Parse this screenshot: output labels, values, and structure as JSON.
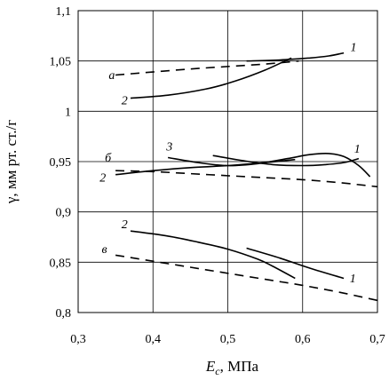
{
  "chart_data": {
    "type": "line",
    "title": "",
    "xlabel_main": "E",
    "xlabel_sub": "c",
    "xlabel_unit": ", МПа",
    "ylabel": "γ, мм рт. ст./г",
    "xlim": [
      0.3,
      0.7
    ],
    "ylim": [
      0.8,
      1.1
    ],
    "x_ticks": [
      "0,3",
      "0,4",
      "0,5",
      "0,6",
      "0,7"
    ],
    "y_ticks": [
      "0,8",
      "0,85",
      "0,9",
      "0,95",
      "1",
      "1,05",
      "1,1"
    ],
    "grid": true,
    "series": [
      {
        "name": "а-1",
        "group": "а",
        "curve": "1",
        "style": "solid",
        "x": [
          0.525,
          0.57,
          0.61,
          0.635,
          0.655
        ],
        "y": [
          1.05,
          1.051,
          1.053,
          1.055,
          1.058
        ]
      },
      {
        "name": "а-2",
        "group": "а",
        "curve": "2",
        "style": "solid",
        "x": [
          0.37,
          0.42,
          0.47,
          0.51,
          0.55,
          0.585
        ],
        "y": [
          1.013,
          1.016,
          1.022,
          1.03,
          1.041,
          1.053
        ]
      },
      {
        "name": "а-d",
        "group": "а",
        "curve": "",
        "style": "dashed",
        "x": [
          0.35,
          0.45,
          0.55,
          0.595
        ],
        "y": [
          1.036,
          1.042,
          1.047,
          1.05
        ]
      },
      {
        "name": "б-1",
        "group": "б",
        "curve": "1",
        "style": "solid",
        "x": [
          0.48,
          0.52,
          0.56,
          0.6,
          0.63,
          0.655,
          0.675
        ],
        "y": [
          0.956,
          0.951,
          0.947,
          0.946,
          0.947,
          0.949,
          0.953
        ]
      },
      {
        "name": "б-2",
        "group": "б",
        "curve": "2",
        "style": "solid",
        "x": [
          0.35,
          0.4,
          0.45,
          0.5,
          0.55,
          0.59
        ],
        "y": [
          0.937,
          0.941,
          0.944,
          0.946,
          0.949,
          0.952
        ]
      },
      {
        "name": "б-3",
        "group": "б",
        "curve": "3",
        "style": "solid",
        "x": [
          0.42,
          0.46,
          0.5,
          0.54,
          0.58,
          0.61,
          0.635,
          0.655,
          0.675,
          0.69
        ],
        "y": [
          0.954,
          0.949,
          0.946,
          0.948,
          0.953,
          0.957,
          0.958,
          0.955,
          0.946,
          0.935
        ]
      },
      {
        "name": "б-d",
        "group": "б",
        "curve": "",
        "style": "dashed",
        "x": [
          0.35,
          0.4,
          0.45,
          0.5,
          0.55,
          0.6,
          0.65,
          0.7
        ],
        "y": [
          0.941,
          0.94,
          0.938,
          0.936,
          0.934,
          0.932,
          0.929,
          0.925
        ]
      },
      {
        "name": "в-1",
        "group": "в",
        "curve": "1",
        "style": "solid",
        "x": [
          0.525,
          0.57,
          0.61,
          0.655
        ],
        "y": [
          0.864,
          0.854,
          0.844,
          0.834
        ]
      },
      {
        "name": "в-2",
        "group": "в",
        "curve": "2",
        "style": "solid",
        "x": [
          0.37,
          0.42,
          0.46,
          0.5,
          0.54,
          0.56,
          0.59
        ],
        "y": [
          0.881,
          0.876,
          0.87,
          0.863,
          0.853,
          0.846,
          0.834
        ]
      },
      {
        "name": "в-d",
        "group": "в",
        "curve": "",
        "style": "dashed",
        "x": [
          0.35,
          0.4,
          0.45,
          0.5,
          0.55,
          0.6,
          0.65,
          0.7
        ],
        "y": [
          0.857,
          0.851,
          0.845,
          0.839,
          0.833,
          0.827,
          0.82,
          0.812
        ]
      }
    ],
    "annotations": [
      {
        "text": "а",
        "x": 0.345,
        "y": 1.032,
        "style": "italic"
      },
      {
        "text": "2",
        "x": 0.362,
        "y": 1.007,
        "style": "italic"
      },
      {
        "text": "1",
        "x": 0.668,
        "y": 1.06,
        "style": "italic"
      },
      {
        "text": "б",
        "x": 0.34,
        "y": 0.95,
        "style": "italic"
      },
      {
        "text": "3",
        "x": 0.422,
        "y": 0.961,
        "style": "italic"
      },
      {
        "text": "1",
        "x": 0.673,
        "y": 0.959,
        "style": "italic"
      },
      {
        "text": "2",
        "x": 0.333,
        "y": 0.93,
        "style": "italic"
      },
      {
        "text": "2",
        "x": 0.362,
        "y": 0.884,
        "style": "italic"
      },
      {
        "text": "в",
        "x": 0.335,
        "y": 0.859,
        "style": "italic"
      },
      {
        "text": "1",
        "x": 0.667,
        "y": 0.83,
        "style": "italic"
      }
    ]
  }
}
